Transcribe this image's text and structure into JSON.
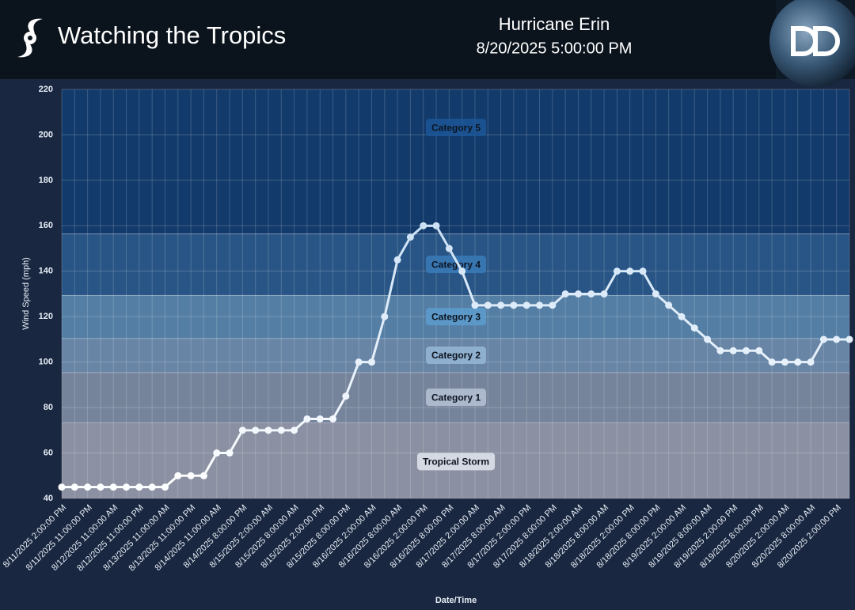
{
  "header": {
    "site": "Watching the Tropics",
    "storm": "Hurricane Erin",
    "timestamp": "8/20/2025 5:00:00 PM"
  },
  "chart_data": {
    "type": "line",
    "xlabel": "Date/Time",
    "ylabel": "Wind Speed (mph)",
    "categories": [
      "8/11/2025 2:00:00 PM",
      null,
      "8/11/2025 11:00:00 PM",
      null,
      "8/12/2025 11:00:00 AM",
      null,
      "8/12/2025 11:00:00 PM",
      null,
      "8/13/2025 11:00:00 AM",
      null,
      "8/13/2025 11:00:00 PM",
      null,
      "8/14/2025 11:00:00 AM",
      null,
      "8/14/2025 8:00:00 PM",
      null,
      "8/15/2025 2:00:00 AM",
      null,
      "8/15/2025 8:00:00 AM",
      null,
      "8/15/2025 2:00:00 PM",
      null,
      "8/15/2025 8:00:00 PM",
      null,
      "8/16/2025 2:00:00 AM",
      null,
      "8/16/2025 8:00:00 AM",
      null,
      "8/16/2025 2:00:00 PM",
      null,
      "8/16/2025 8:00:00 PM",
      null,
      "8/17/2025 2:00:00 AM",
      null,
      "8/17/2025 8:00:00 AM",
      null,
      "8/17/2025 2:00:00 PM",
      null,
      "8/17/2025 8:00:00 PM",
      null,
      "8/18/2025 2:00:00 AM",
      null,
      "8/18/2025 8:00:00 AM",
      null,
      "8/18/2025 2:00:00 PM",
      null,
      "8/18/2025 8:00:00 PM",
      null,
      "8/19/2025 2:00:00 AM",
      null,
      "8/19/2025 8:00:00 AM",
      null,
      "8/19/2025 2:00:00 PM",
      null,
      "8/19/2025 8:00:00 PM",
      null,
      "8/20/2025 2:00:00 AM",
      null,
      "8/20/2025 8:00:00 AM",
      null,
      "8/20/2025 2:00:00 PM",
      null
    ],
    "values": [
      45,
      45,
      45,
      45,
      45,
      45,
      45,
      45,
      45,
      50,
      50,
      50,
      60,
      60,
      70,
      70,
      70,
      70,
      70,
      75,
      75,
      75,
      85,
      100,
      100,
      120,
      145,
      155,
      160,
      160,
      150,
      140,
      125,
      125,
      125,
      125,
      125,
      125,
      125,
      130,
      130,
      130,
      130,
      140,
      140,
      140,
      130,
      125,
      120,
      115,
      110,
      105,
      105,
      105,
      105,
      100,
      100,
      100,
      100,
      110,
      110,
      110
    ],
    "color": "#f2f6fb",
    "ylim": [
      40,
      220
    ],
    "yticks": [
      40,
      60,
      80,
      100,
      120,
      140,
      160,
      180,
      200,
      220
    ],
    "grid": true,
    "bands": [
      {
        "label": "Tropical Storm",
        "from": 39,
        "to": 73.5,
        "color": "#8b91a2",
        "label_color": "#dde1ea"
      },
      {
        "label": "Category 1",
        "from": 73.5,
        "to": 95.5,
        "color": "#76849b",
        "label_color": "#b3bfd3"
      },
      {
        "label": "Category 2",
        "from": 95.5,
        "to": 110.5,
        "color": "#6885a6",
        "label_color": "#93b4d3"
      },
      {
        "label": "Category 3",
        "from": 110.5,
        "to": 129.5,
        "color": "#547ea4",
        "label_color": "#5c9bcc"
      },
      {
        "label": "Category 4",
        "from": 129.5,
        "to": 156.5,
        "color": "#285585",
        "label_color": "#3979b6"
      },
      {
        "label": "Category 5",
        "from": 156.5,
        "to": 250,
        "color": "#123a6b",
        "label_color": "#1c5596"
      }
    ]
  }
}
